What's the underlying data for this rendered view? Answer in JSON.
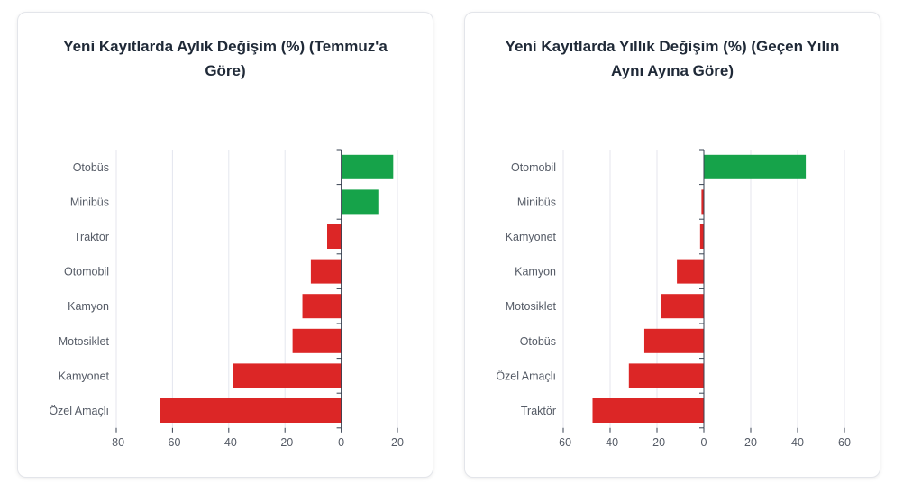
{
  "colors": {
    "positive": "#16a34a",
    "negative": "#dc2626",
    "grid": "#e4e6ee",
    "axis": "#374151",
    "tick_text": "#555b66"
  },
  "chart_data": [
    {
      "type": "bar",
      "orientation": "horizontal",
      "title": "Yeni Kayıtlarda Aylık Değişim (%) (Temmuz'a Göre)",
      "categories": [
        "Otobüs",
        "Minibüs",
        "Traktör",
        "Otomobil",
        "Kamyon",
        "Motosiklet",
        "Kamyonet",
        "Özel Amaçlı"
      ],
      "values": [
        18.5,
        13.2,
        -5.0,
        -10.8,
        -13.8,
        -17.3,
        -38.6,
        -64.4
      ],
      "xlim": [
        -80,
        20
      ],
      "xticks": [
        -80,
        -60,
        -40,
        -20,
        0,
        20
      ],
      "grid": true
    },
    {
      "type": "bar",
      "orientation": "horizontal",
      "title": "Yeni Kayıtlarda Yıllık Değişim (%) (Geçen Yılın Aynı Ayına Göre)",
      "categories": [
        "Otomobil",
        "Minibüs",
        "Kamyonet",
        "Kamyon",
        "Motosiklet",
        "Otobüs",
        "Özel Amaçlı",
        "Traktör"
      ],
      "values": [
        43.5,
        -1.0,
        -1.6,
        -11.5,
        -18.4,
        -25.4,
        -32.0,
        -47.5
      ],
      "xlim": [
        -60,
        60
      ],
      "xticks": [
        -60,
        -40,
        -20,
        0,
        20,
        40,
        60
      ],
      "grid": true
    }
  ]
}
